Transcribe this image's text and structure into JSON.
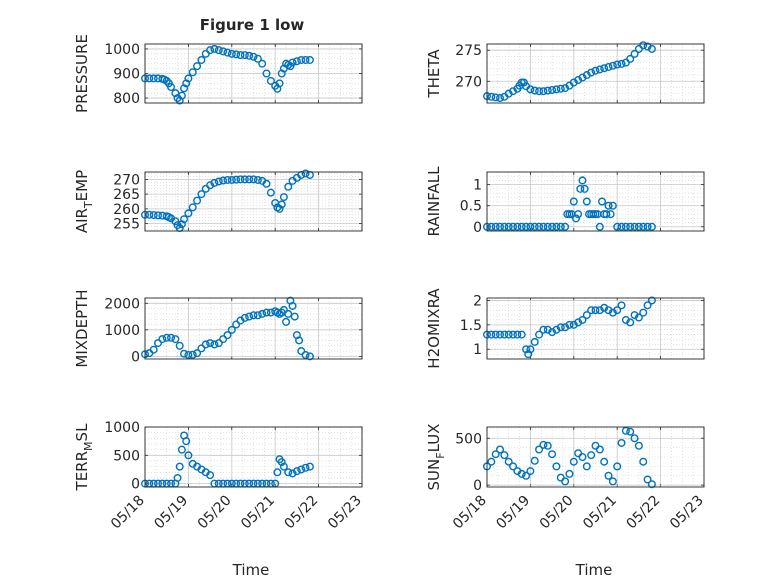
{
  "figure": {
    "title": "Figure 1 low",
    "xlabel": "Time",
    "x_tick_labels": [
      "05/18",
      "05/19",
      "05/20",
      "05/21",
      "05/22",
      "05/23"
    ],
    "marker_color": "#0072BD"
  },
  "chart_data": [
    {
      "type": "scatter",
      "ylabel": "PRESSURE",
      "ylabel_sub": "",
      "xlim": [
        "05/18",
        "05/23"
      ],
      "ylim": [
        780,
        1020
      ],
      "yticks": [
        800,
        900,
        1000
      ],
      "ytick_labels": [
        "800",
        "900",
        "1000"
      ],
      "grid": true,
      "x_days": [
        0.0,
        0.1,
        0.2,
        0.3,
        0.4,
        0.45,
        0.5,
        0.55,
        0.6,
        0.7,
        0.75,
        0.8,
        0.85,
        0.9,
        0.95,
        1.0,
        1.1,
        1.2,
        1.3,
        1.4,
        1.5,
        1.6,
        1.7,
        1.8,
        1.9,
        2.0,
        2.1,
        2.2,
        2.3,
        2.4,
        2.5,
        2.6,
        2.7,
        2.8,
        2.9,
        3.0,
        3.05,
        3.1,
        3.15,
        3.2,
        3.25,
        3.3,
        3.35,
        3.4,
        3.5,
        3.6,
        3.7,
        3.8
      ],
      "y": [
        880,
        880,
        880,
        880,
        878,
        875,
        870,
        860,
        845,
        820,
        800,
        790,
        810,
        840,
        860,
        880,
        905,
        930,
        955,
        980,
        995,
        1000,
        995,
        990,
        985,
        980,
        978,
        975,
        975,
        972,
        968,
        960,
        940,
        900,
        870,
        850,
        838,
        860,
        900,
        920,
        940,
        935,
        930,
        945,
        950,
        955,
        955,
        955
      ]
    },
    {
      "type": "scatter",
      "ylabel": "THETA",
      "ylabel_sub": "",
      "xlim": [
        "05/18",
        "05/23"
      ],
      "ylim": [
        266.5,
        276
      ],
      "yticks": [
        270,
        275
      ],
      "ytick_labels": [
        "270",
        "275"
      ],
      "grid": true,
      "x_days": [
        0.0,
        0.1,
        0.2,
        0.3,
        0.4,
        0.5,
        0.6,
        0.7,
        0.75,
        0.8,
        0.85,
        0.9,
        1.0,
        1.1,
        1.2,
        1.3,
        1.4,
        1.5,
        1.6,
        1.7,
        1.8,
        1.9,
        2.0,
        2.1,
        2.2,
        2.3,
        2.4,
        2.5,
        2.6,
        2.7,
        2.8,
        2.9,
        3.0,
        3.1,
        3.2,
        3.3,
        3.4,
        3.5,
        3.6,
        3.7,
        3.8
      ],
      "y": [
        267.6,
        267.5,
        267.4,
        267.3,
        267.5,
        268.0,
        268.4,
        268.8,
        269.3,
        269.8,
        269.8,
        269.2,
        268.7,
        268.5,
        268.4,
        268.4,
        268.5,
        268.6,
        268.7,
        268.8,
        268.9,
        269.3,
        269.8,
        270.2,
        270.6,
        271.0,
        271.4,
        271.7,
        271.9,
        272.1,
        272.3,
        272.5,
        272.7,
        272.8,
        273.0,
        273.6,
        274.4,
        275.2,
        275.8,
        275.6,
        275.2
      ]
    },
    {
      "type": "scatter",
      "ylabel": "AIR",
      "ylabel_sub": "T",
      "ylabel_post": "EMP",
      "xlim": [
        "05/18",
        "05/23"
      ],
      "ylim": [
        252.5,
        272.5
      ],
      "yticks": [
        255,
        260,
        265,
        270
      ],
      "ytick_labels": [
        "255",
        "260",
        "265",
        "270"
      ],
      "grid": true,
      "x_days": [
        0.0,
        0.1,
        0.2,
        0.3,
        0.4,
        0.5,
        0.55,
        0.6,
        0.7,
        0.75,
        0.8,
        0.85,
        0.9,
        1.0,
        1.1,
        1.2,
        1.3,
        1.4,
        1.5,
        1.6,
        1.7,
        1.8,
        1.9,
        2.0,
        2.1,
        2.2,
        2.3,
        2.4,
        2.5,
        2.6,
        2.7,
        2.8,
        2.9,
        3.0,
        3.05,
        3.1,
        3.15,
        3.2,
        3.3,
        3.4,
        3.5,
        3.6,
        3.7,
        3.8
      ],
      "y": [
        258.0,
        258.0,
        257.9,
        257.8,
        257.7,
        257.5,
        257.2,
        256.8,
        255.8,
        254.5,
        253.5,
        254.8,
        256.5,
        258.5,
        260.5,
        262.8,
        265.0,
        266.8,
        268.0,
        268.8,
        269.3,
        269.6,
        269.8,
        269.8,
        269.9,
        270.0,
        270.0,
        270.0,
        270.0,
        269.8,
        269.5,
        268.5,
        265.5,
        262.0,
        260.5,
        260.0,
        261.5,
        264.0,
        267.5,
        269.5,
        270.5,
        271.5,
        272.0,
        271.5
      ]
    },
    {
      "type": "scatter",
      "ylabel": "RAINFALL",
      "ylabel_sub": "",
      "xlim": [
        "05/18",
        "05/23"
      ],
      "ylim": [
        -0.1,
        1.3
      ],
      "yticks": [
        0,
        0.5,
        1
      ],
      "ytick_labels": [
        "0",
        "0.5",
        "1"
      ],
      "grid": true,
      "x_days": [
        0.0,
        0.1,
        0.2,
        0.3,
        0.4,
        0.5,
        0.6,
        0.7,
        0.8,
        0.9,
        1.0,
        1.1,
        1.2,
        1.3,
        1.4,
        1.5,
        1.6,
        1.7,
        1.8,
        1.85,
        1.9,
        1.95,
        2.0,
        2.05,
        2.1,
        2.15,
        2.2,
        2.25,
        2.3,
        2.35,
        2.4,
        2.45,
        2.5,
        2.55,
        2.6,
        2.65,
        2.7,
        2.75,
        2.8,
        2.85,
        2.9,
        3.0,
        3.1,
        3.2,
        3.3,
        3.4,
        3.5,
        3.6,
        3.7,
        3.8
      ],
      "y": [
        0,
        0,
        0,
        0,
        0,
        0,
        0,
        0,
        0,
        0,
        0,
        0,
        0,
        0,
        0,
        0,
        0,
        0,
        0,
        0.3,
        0.3,
        0.3,
        0.6,
        0.2,
        0.3,
        0.9,
        1.1,
        0.9,
        0.6,
        0.3,
        0.3,
        0.3,
        0.3,
        0.3,
        0.0,
        0.6,
        0.3,
        0.3,
        0.5,
        0.3,
        0.5,
        0,
        0,
        0,
        0,
        0,
        0,
        0,
        0,
        0
      ]
    },
    {
      "type": "scatter",
      "ylabel": "MIXDEPTH",
      "ylabel_sub": "",
      "xlim": [
        "05/18",
        "05/23"
      ],
      "ylim": [
        -100,
        2200
      ],
      "yticks": [
        0,
        1000,
        2000
      ],
      "ytick_labels": [
        "0",
        "1000",
        "2000"
      ],
      "grid": true,
      "x_days": [
        0.0,
        0.1,
        0.2,
        0.3,
        0.4,
        0.5,
        0.6,
        0.7,
        0.8,
        0.9,
        1.0,
        1.1,
        1.2,
        1.3,
        1.4,
        1.5,
        1.6,
        1.7,
        1.8,
        1.9,
        2.0,
        2.1,
        2.2,
        2.3,
        2.4,
        2.5,
        2.6,
        2.7,
        2.8,
        2.9,
        3.0,
        3.05,
        3.1,
        3.15,
        3.2,
        3.25,
        3.3,
        3.35,
        3.4,
        3.45,
        3.5,
        3.55,
        3.6,
        3.7,
        3.8
      ],
      "y": [
        80,
        120,
        250,
        500,
        650,
        700,
        700,
        650,
        400,
        100,
        50,
        60,
        120,
        300,
        450,
        500,
        450,
        500,
        650,
        800,
        1000,
        1200,
        1350,
        1450,
        1500,
        1550,
        1550,
        1600,
        1650,
        1650,
        1700,
        1650,
        1600,
        1650,
        1750,
        1300,
        1600,
        2100,
        1900,
        1500,
        800,
        600,
        200,
        50,
        0
      ]
    },
    {
      "type": "scatter",
      "ylabel": "H2OMIXRA",
      "ylabel_sub": "",
      "xlim": [
        "05/18",
        "05/23"
      ],
      "ylim": [
        0.8,
        2.05
      ],
      "yticks": [
        1,
        1.5,
        2
      ],
      "ytick_labels": [
        "1",
        "1.5",
        "2"
      ],
      "grid": true,
      "x_days": [
        0.0,
        0.1,
        0.2,
        0.3,
        0.4,
        0.5,
        0.6,
        0.7,
        0.8,
        0.9,
        0.95,
        1.0,
        1.1,
        1.2,
        1.3,
        1.4,
        1.5,
        1.6,
        1.7,
        1.8,
        1.9,
        2.0,
        2.1,
        2.2,
        2.3,
        2.4,
        2.5,
        2.6,
        2.7,
        2.8,
        2.9,
        3.0,
        3.1,
        3.2,
        3.3,
        3.4,
        3.5,
        3.6,
        3.7,
        3.8
      ],
      "y": [
        1.3,
        1.3,
        1.3,
        1.3,
        1.3,
        1.3,
        1.3,
        1.3,
        1.3,
        1.0,
        0.9,
        1.0,
        1.15,
        1.3,
        1.4,
        1.4,
        1.35,
        1.4,
        1.45,
        1.45,
        1.5,
        1.5,
        1.55,
        1.6,
        1.7,
        1.8,
        1.8,
        1.8,
        1.85,
        1.8,
        1.75,
        1.8,
        1.9,
        1.6,
        1.55,
        1.7,
        1.65,
        1.75,
        1.9,
        2.0
      ]
    },
    {
      "type": "scatter",
      "ylabel": "TERR",
      "ylabel_sub": "M",
      "ylabel_post": "SL",
      "xlim": [
        "05/18",
        "05/23"
      ],
      "ylim": [
        -60,
        1000
      ],
      "yticks": [
        0,
        500,
        1000
      ],
      "ytick_labels": [
        "0",
        "500",
        "1000"
      ],
      "grid": true,
      "x_days": [
        0.0,
        0.1,
        0.2,
        0.3,
        0.4,
        0.5,
        0.6,
        0.7,
        0.75,
        0.8,
        0.85,
        0.9,
        0.95,
        1.0,
        1.1,
        1.2,
        1.3,
        1.4,
        1.5,
        1.6,
        1.7,
        1.8,
        1.9,
        2.0,
        2.1,
        2.2,
        2.3,
        2.4,
        2.5,
        2.6,
        2.7,
        2.8,
        2.9,
        3.0,
        3.05,
        3.1,
        3.15,
        3.2,
        3.3,
        3.4,
        3.5,
        3.6,
        3.7,
        3.8
      ],
      "y": [
        0,
        0,
        0,
        0,
        0,
        0,
        0,
        0,
        100,
        300,
        600,
        850,
        750,
        500,
        350,
        300,
        250,
        200,
        150,
        0,
        0,
        0,
        0,
        0,
        0,
        0,
        0,
        0,
        0,
        0,
        0,
        0,
        0,
        0,
        200,
        430,
        380,
        300,
        200,
        180,
        220,
        250,
        280,
        300
      ]
    },
    {
      "type": "scatter",
      "ylabel": "SUN",
      "ylabel_sub": "F",
      "ylabel_post": "LUX",
      "xlim": [
        "05/18",
        "05/23"
      ],
      "ylim": [
        -20,
        620
      ],
      "yticks": [
        0,
        500
      ],
      "ytick_labels": [
        "0",
        "500"
      ],
      "grid": true,
      "x_days": [
        0.0,
        0.1,
        0.2,
        0.3,
        0.4,
        0.5,
        0.6,
        0.7,
        0.8,
        0.9,
        1.0,
        1.1,
        1.2,
        1.3,
        1.4,
        1.5,
        1.6,
        1.7,
        1.8,
        1.9,
        2.0,
        2.1,
        2.2,
        2.3,
        2.4,
        2.5,
        2.6,
        2.7,
        2.8,
        2.9,
        3.0,
        3.1,
        3.2,
        3.3,
        3.4,
        3.5,
        3.6,
        3.7,
        3.8
      ],
      "y": [
        200,
        250,
        330,
        380,
        320,
        250,
        200,
        150,
        120,
        100,
        150,
        260,
        380,
        430,
        420,
        330,
        200,
        80,
        40,
        120,
        250,
        340,
        300,
        200,
        320,
        420,
        380,
        250,
        100,
        40,
        200,
        450,
        580,
        570,
        500,
        420,
        250,
        60,
        10
      ]
    }
  ]
}
